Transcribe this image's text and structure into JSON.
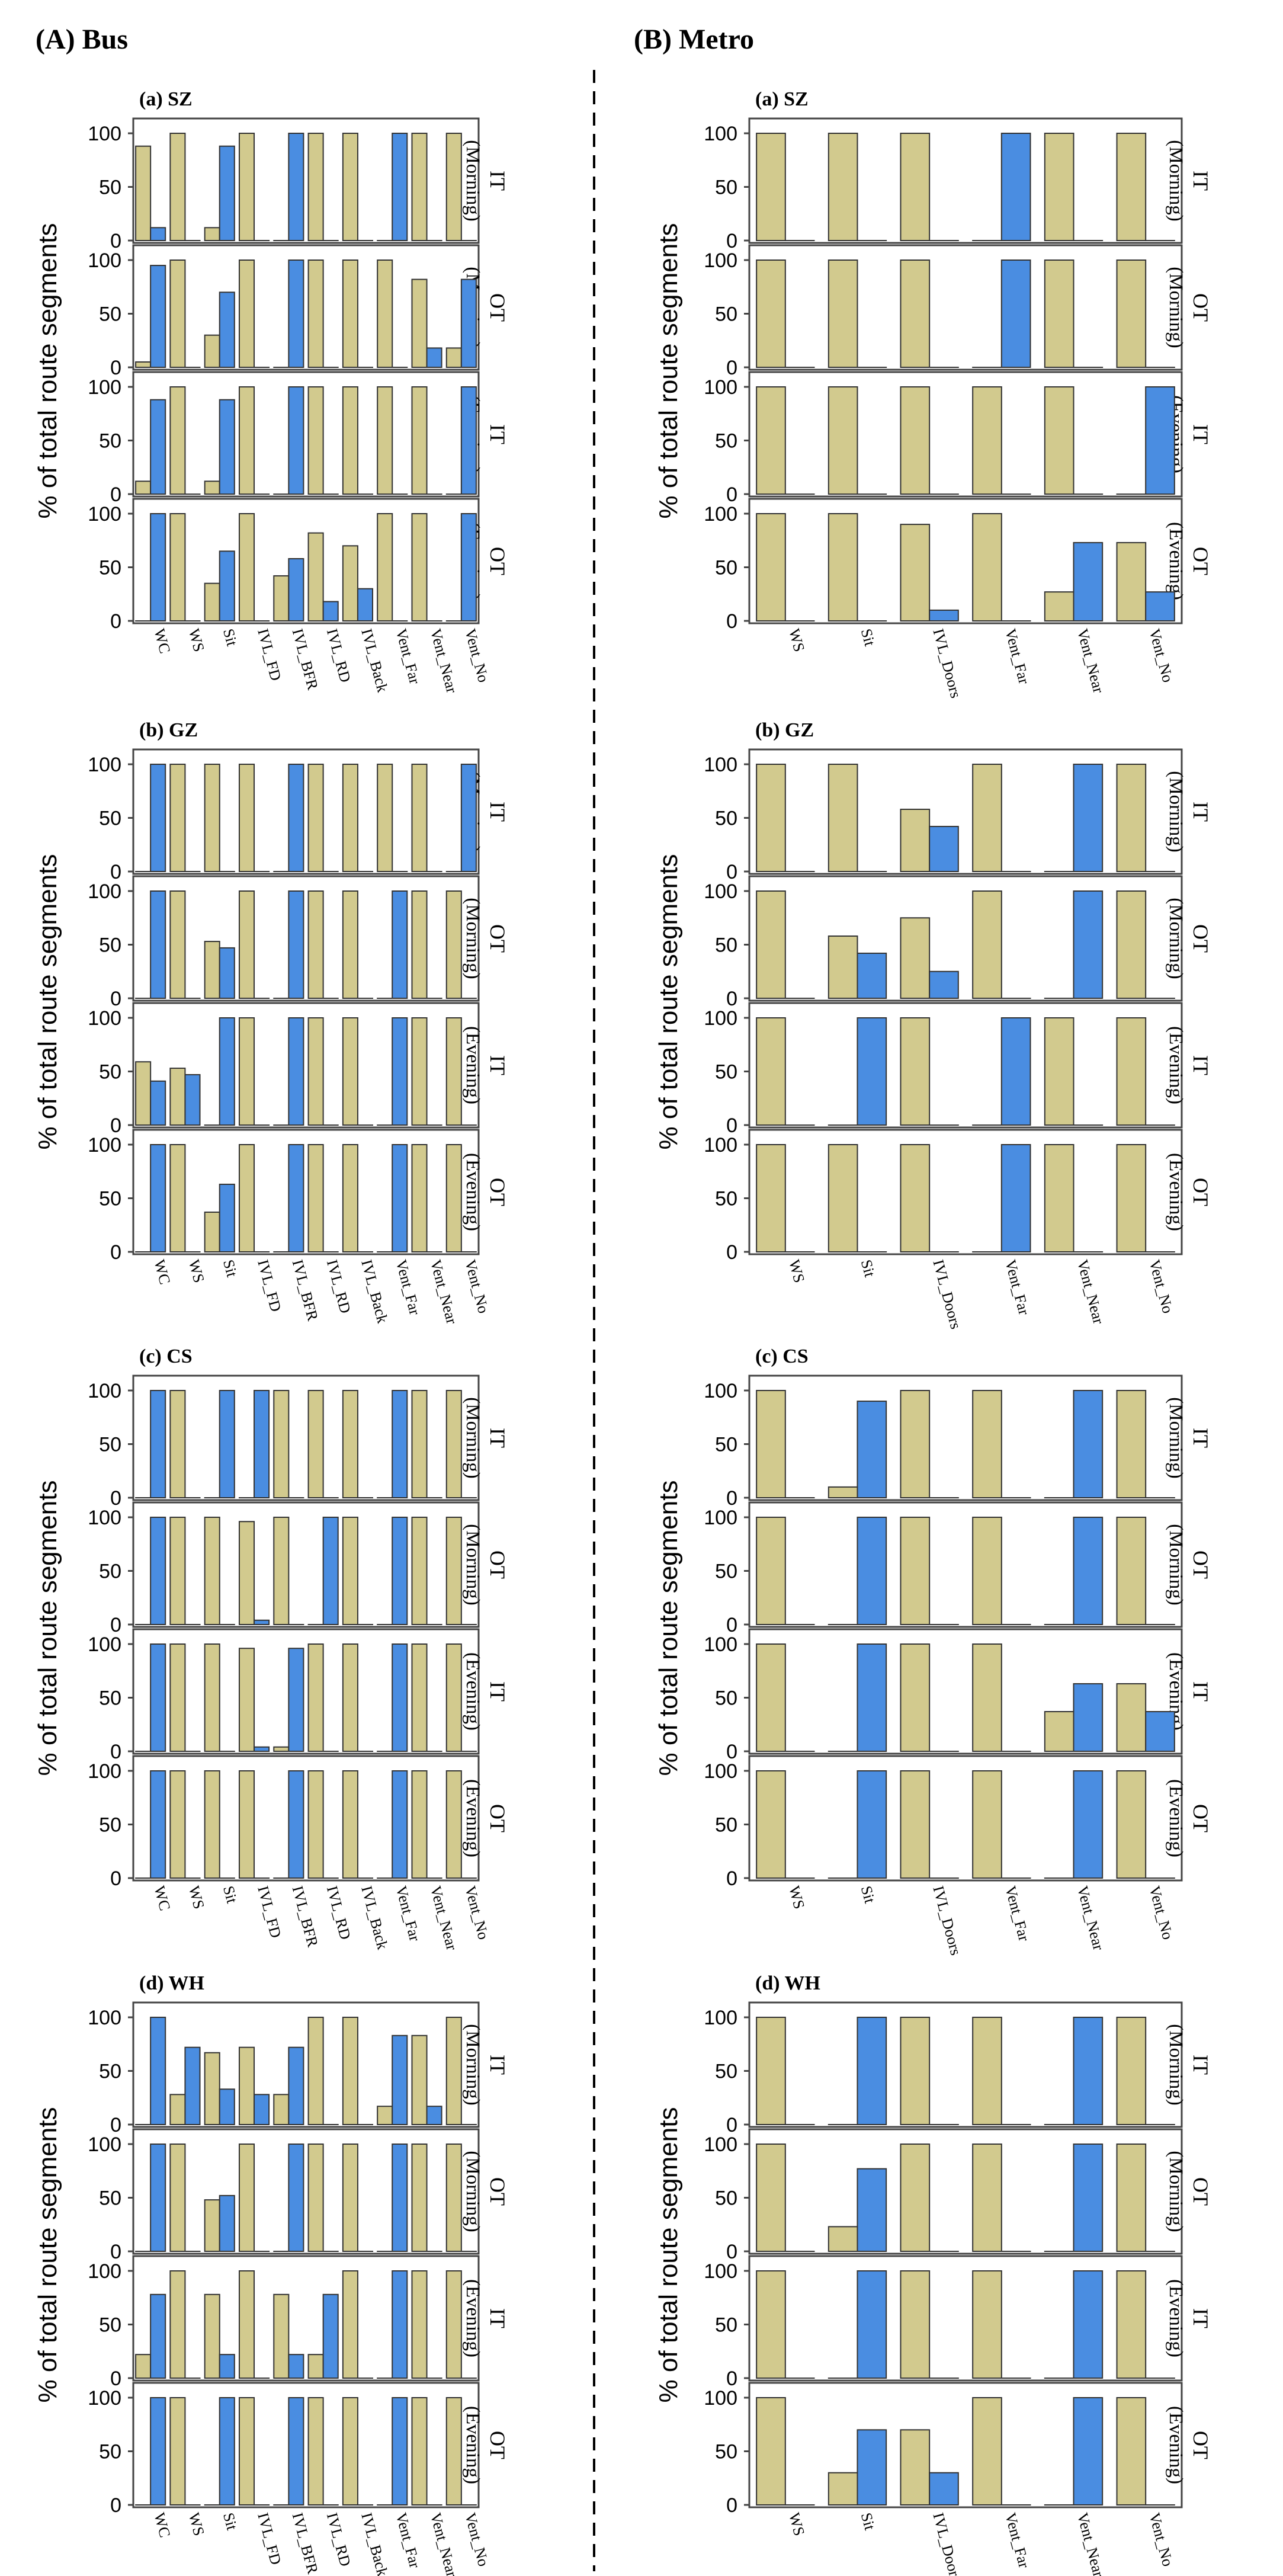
{
  "panel_titles": {
    "bus": "(A) Bus",
    "metro": "(B) Metro"
  },
  "y_axis_label": "% of total route segments",
  "y_ticks": [
    0,
    50,
    100
  ],
  "row_labels": [
    {
      "code": "IT",
      "period": "(Morning)"
    },
    {
      "code": "OT",
      "period": "(Morning)"
    },
    {
      "code": "IT",
      "period": "(Evening)"
    },
    {
      "code": "OT",
      "period": "(Evening)"
    }
  ],
  "colors": {
    "bar_tan": "#D2CA8E",
    "bar_blue": "#4A8DE1",
    "bar_edge": "#333333",
    "frame": "#444444",
    "text": "#000000"
  },
  "bus_categories": [
    "WC",
    "WS",
    "Sit",
    "IVL_FD",
    "IVL_BFR",
    "IVL_RD",
    "IVL_Back",
    "Vent_Far",
    "Vent_Near",
    "Vent_No"
  ],
  "metro_categories": [
    "WS",
    "Sit",
    "IVL_Doors",
    "Vent_Far",
    "Vent_Near",
    "Vent_No"
  ],
  "chart_data": [
    {
      "type": "bar",
      "mode": "bus",
      "city": "SZ",
      "title": "(a) SZ",
      "ylim": [
        0,
        100
      ],
      "rows": [
        {
          "tan": [
            88,
            100,
            12,
            100,
            0,
            100,
            100,
            0,
            100,
            100
          ],
          "blue": [
            12,
            0,
            88,
            0,
            100,
            0,
            0,
            100,
            0,
            0
          ]
        },
        {
          "tan": [
            5,
            100,
            30,
            100,
            0,
            100,
            100,
            100,
            82,
            18
          ],
          "blue": [
            95,
            0,
            70,
            0,
            100,
            0,
            0,
            0,
            18,
            82
          ]
        },
        {
          "tan": [
            12,
            100,
            12,
            100,
            0,
            100,
            100,
            100,
            100,
            0
          ],
          "blue": [
            88,
            0,
            88,
            0,
            100,
            0,
            0,
            0,
            0,
            100
          ]
        },
        {
          "tan": [
            0,
            100,
            35,
            100,
            42,
            82,
            70,
            100,
            100,
            0
          ],
          "blue": [
            100,
            0,
            65,
            0,
            58,
            18,
            30,
            0,
            0,
            100
          ]
        }
      ]
    },
    {
      "type": "bar",
      "mode": "bus",
      "city": "GZ",
      "title": "(b) GZ",
      "ylim": [
        0,
        100
      ],
      "rows": [
        {
          "tan": [
            0,
            100,
            100,
            100,
            0,
            100,
            100,
            100,
            100,
            0
          ],
          "blue": [
            100,
            0,
            0,
            0,
            100,
            0,
            0,
            0,
            0,
            100
          ]
        },
        {
          "tan": [
            0,
            100,
            53,
            100,
            0,
            100,
            100,
            0,
            100,
            100
          ],
          "blue": [
            100,
            0,
            47,
            0,
            100,
            0,
            0,
            100,
            0,
            0
          ]
        },
        {
          "tan": [
            59,
            53,
            0,
            100,
            0,
            100,
            100,
            0,
            100,
            100
          ],
          "blue": [
            41,
            47,
            100,
            0,
            100,
            0,
            0,
            100,
            0,
            0
          ]
        },
        {
          "tan": [
            0,
            100,
            37,
            100,
            0,
            100,
            100,
            0,
            100,
            100
          ],
          "blue": [
            100,
            0,
            63,
            0,
            100,
            0,
            0,
            100,
            0,
            0
          ]
        }
      ]
    },
    {
      "type": "bar",
      "mode": "bus",
      "city": "CS",
      "title": "(c) CS",
      "ylim": [
        0,
        100
      ],
      "rows": [
        {
          "tan": [
            0,
            100,
            0,
            0,
            100,
            100,
            100,
            0,
            100,
            100
          ],
          "blue": [
            100,
            0,
            100,
            100,
            0,
            0,
            0,
            100,
            0,
            0
          ]
        },
        {
          "tan": [
            0,
            100,
            100,
            96,
            100,
            0,
            100,
            0,
            100,
            100
          ],
          "blue": [
            100,
            0,
            0,
            4,
            0,
            100,
            0,
            100,
            0,
            0
          ]
        },
        {
          "tan": [
            0,
            100,
            100,
            96,
            4,
            100,
            100,
            0,
            100,
            100
          ],
          "blue": [
            100,
            0,
            0,
            4,
            96,
            0,
            0,
            100,
            0,
            0
          ]
        },
        {
          "tan": [
            0,
            100,
            100,
            100,
            0,
            100,
            100,
            0,
            100,
            100
          ],
          "blue": [
            100,
            0,
            0,
            0,
            100,
            0,
            0,
            100,
            0,
            0
          ]
        }
      ]
    },
    {
      "type": "bar",
      "mode": "bus",
      "city": "WH",
      "title": "(d) WH",
      "ylim": [
        0,
        100
      ],
      "rows": [
        {
          "tan": [
            0,
            28,
            67,
            72,
            28,
            100,
            100,
            17,
            83,
            100
          ],
          "blue": [
            100,
            72,
            33,
            28,
            72,
            0,
            0,
            83,
            17,
            0
          ]
        },
        {
          "tan": [
            0,
            100,
            48,
            100,
            0,
            100,
            100,
            0,
            100,
            100
          ],
          "blue": [
            100,
            0,
            52,
            0,
            100,
            0,
            0,
            100,
            0,
            0
          ]
        },
        {
          "tan": [
            22,
            100,
            78,
            100,
            78,
            22,
            100,
            0,
            100,
            100
          ],
          "blue": [
            78,
            0,
            22,
            0,
            22,
            78,
            0,
            100,
            0,
            0
          ]
        },
        {
          "tan": [
            0,
            100,
            0,
            100,
            0,
            100,
            100,
            0,
            100,
            100
          ],
          "blue": [
            100,
            0,
            100,
            0,
            100,
            0,
            0,
            100,
            0,
            0
          ]
        }
      ]
    },
    {
      "type": "bar",
      "mode": "metro",
      "city": "SZ",
      "title": "(a) SZ",
      "ylim": [
        0,
        100
      ],
      "rows": [
        {
          "tan": [
            100,
            100,
            100,
            0,
            100,
            100
          ],
          "blue": [
            0,
            0,
            0,
            100,
            0,
            0
          ]
        },
        {
          "tan": [
            100,
            100,
            100,
            0,
            100,
            100
          ],
          "blue": [
            0,
            0,
            0,
            100,
            0,
            0
          ]
        },
        {
          "tan": [
            100,
            100,
            100,
            100,
            100,
            0
          ],
          "blue": [
            0,
            0,
            0,
            0,
            0,
            100
          ]
        },
        {
          "tan": [
            100,
            100,
            90,
            100,
            27,
            73
          ],
          "blue": [
            0,
            0,
            10,
            0,
            73,
            27
          ]
        }
      ]
    },
    {
      "type": "bar",
      "mode": "metro",
      "city": "GZ",
      "title": "(b) GZ",
      "ylim": [
        0,
        100
      ],
      "rows": [
        {
          "tan": [
            100,
            100,
            58,
            100,
            0,
            100
          ],
          "blue": [
            0,
            0,
            42,
            0,
            100,
            0
          ]
        },
        {
          "tan": [
            100,
            58,
            75,
            100,
            0,
            100
          ],
          "blue": [
            0,
            42,
            25,
            0,
            100,
            0
          ]
        },
        {
          "tan": [
            100,
            0,
            100,
            0,
            100,
            100
          ],
          "blue": [
            0,
            100,
            0,
            100,
            0,
            0
          ]
        },
        {
          "tan": [
            100,
            100,
            100,
            0,
            100,
            100
          ],
          "blue": [
            0,
            0,
            0,
            100,
            0,
            0
          ]
        }
      ]
    },
    {
      "type": "bar",
      "mode": "metro",
      "city": "CS",
      "title": "(c) CS",
      "ylim": [
        0,
        100
      ],
      "rows": [
        {
          "tan": [
            100,
            10,
            100,
            100,
            0,
            100
          ],
          "blue": [
            0,
            90,
            0,
            0,
            100,
            0
          ]
        },
        {
          "tan": [
            100,
            0,
            100,
            100,
            0,
            100
          ],
          "blue": [
            0,
            100,
            0,
            0,
            100,
            0
          ]
        },
        {
          "tan": [
            100,
            0,
            100,
            100,
            37,
            63
          ],
          "blue": [
            0,
            100,
            0,
            0,
            63,
            37
          ]
        },
        {
          "tan": [
            100,
            0,
            100,
            100,
            0,
            100
          ],
          "blue": [
            0,
            100,
            0,
            0,
            100,
            0
          ]
        }
      ]
    },
    {
      "type": "bar",
      "mode": "metro",
      "city": "WH",
      "title": "(d) WH",
      "ylim": [
        0,
        100
      ],
      "rows": [
        {
          "tan": [
            100,
            0,
            100,
            100,
            0,
            100
          ],
          "blue": [
            0,
            100,
            0,
            0,
            100,
            0
          ]
        },
        {
          "tan": [
            100,
            23,
            100,
            100,
            0,
            100
          ],
          "blue": [
            0,
            77,
            0,
            0,
            100,
            0
          ]
        },
        {
          "tan": [
            100,
            0,
            100,
            100,
            0,
            100
          ],
          "blue": [
            0,
            100,
            0,
            0,
            100,
            0
          ]
        },
        {
          "tan": [
            100,
            30,
            70,
            100,
            0,
            100
          ],
          "blue": [
            0,
            70,
            30,
            0,
            100,
            0
          ]
        }
      ]
    }
  ]
}
